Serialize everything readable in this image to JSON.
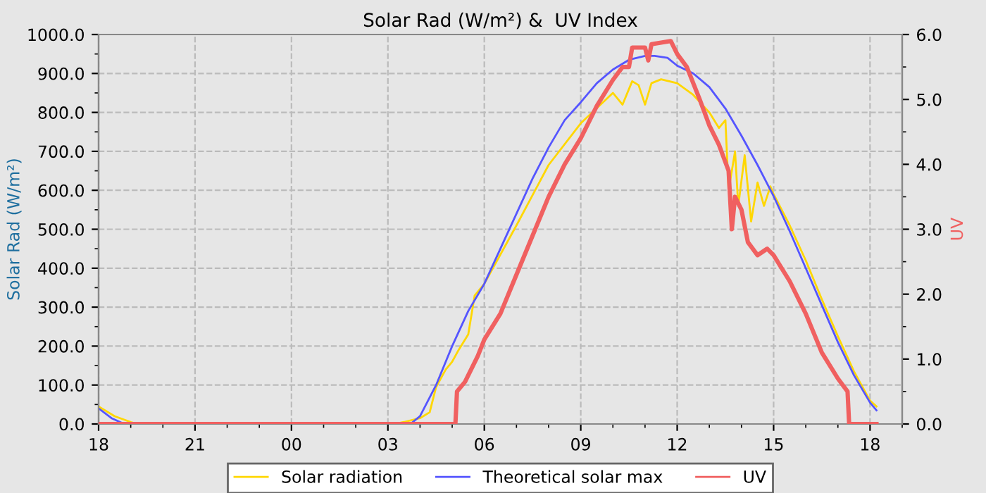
{
  "chart_data": {
    "type": "line",
    "title": "Solar Rad (W/m²) &  UV Index",
    "ylabel": "Solar Rad (W/m²)",
    "y2label": "UV",
    "xlim": [
      18,
      43.0
    ],
    "ylim": [
      0,
      1000
    ],
    "y2lim": [
      0,
      6
    ],
    "xticks": [
      {
        "value": 18,
        "label": "18"
      },
      {
        "value": 21,
        "label": "21"
      },
      {
        "value": 24,
        "label": "00"
      },
      {
        "value": 27,
        "label": "03"
      },
      {
        "value": 30,
        "label": "06"
      },
      {
        "value": 33,
        "label": "09"
      },
      {
        "value": 36,
        "label": "12"
      },
      {
        "value": 39,
        "label": "15"
      },
      {
        "value": 42,
        "label": "18"
      }
    ],
    "yticks": [
      {
        "value": 0,
        "label": "0.0"
      },
      {
        "value": 100,
        "label": "100.0"
      },
      {
        "value": 200,
        "label": "200.0"
      },
      {
        "value": 300,
        "label": "300.0"
      },
      {
        "value": 400,
        "label": "400.0"
      },
      {
        "value": 500,
        "label": "500.0"
      },
      {
        "value": 600,
        "label": "600.0"
      },
      {
        "value": 700,
        "label": "700.0"
      },
      {
        "value": 800,
        "label": "800.0"
      },
      {
        "value": 900,
        "label": "900.0"
      },
      {
        "value": 1000,
        "label": "1000.0"
      }
    ],
    "y2ticks": [
      {
        "value": 0,
        "label": "0.0"
      },
      {
        "value": 1,
        "label": "1.0"
      },
      {
        "value": 2,
        "label": "2.0"
      },
      {
        "value": 3,
        "label": "3.0"
      },
      {
        "value": 4,
        "label": "4.0"
      },
      {
        "value": 5,
        "label": "5.0"
      },
      {
        "value": 6,
        "label": "6.0"
      }
    ],
    "grid": true,
    "legend": "bottom",
    "line_style": "solid",
    "series": [
      {
        "name": "Solar radiation",
        "color": "#ffd700",
        "x": [
          18.0,
          18.5,
          19.0,
          19.2,
          27.2,
          27.5,
          28.0,
          28.3,
          28.5,
          28.8,
          29.0,
          29.2,
          29.5,
          29.7,
          30.0,
          31.0,
          32.0,
          33.0,
          34.0,
          34.3,
          34.6,
          34.8,
          35.0,
          35.2,
          35.5,
          36.0,
          36.5,
          37.0,
          37.3,
          37.5,
          37.6,
          37.8,
          37.9,
          38.1,
          38.3,
          38.5,
          38.7,
          38.9,
          39.0,
          39.5,
          40.0,
          40.5,
          41.0,
          41.5,
          42.0,
          42.2
        ],
        "values": [
          45,
          20,
          5,
          0,
          0,
          5,
          15,
          30,
          95,
          140,
          160,
          190,
          230,
          330,
          360,
          510,
          665,
          772,
          850,
          820,
          880,
          870,
          820,
          875,
          885,
          875,
          845,
          800,
          760,
          780,
          600,
          700,
          560,
          690,
          520,
          620,
          560,
          610,
          590,
          510,
          420,
          320,
          225,
          135,
          60,
          45
        ]
      },
      {
        "name": "Theoretical solar max",
        "color": "#5555ff",
        "x": [
          18.0,
          18.4,
          18.8,
          27.7,
          28.0,
          28.5,
          29.0,
          29.5,
          30.0,
          30.5,
          31.0,
          31.5,
          32.0,
          32.5,
          33.0,
          33.5,
          34.0,
          34.5,
          35.0,
          35.3,
          35.7,
          36.0,
          36.5,
          37.0,
          37.5,
          38.0,
          38.5,
          39.0,
          39.5,
          40.0,
          40.5,
          41.0,
          41.5,
          42.0,
          42.2
        ],
        "values": [
          40,
          15,
          0,
          0,
          20,
          100,
          200,
          290,
          360,
          450,
          540,
          630,
          710,
          780,
          826,
          875,
          910,
          935,
          945,
          945,
          940,
          920,
          900,
          865,
          810,
          740,
          665,
          585,
          495,
          400,
          305,
          210,
          125,
          55,
          35
        ]
      },
      {
        "name": "UV",
        "color": "#f06060",
        "axis": "y2",
        "x": [
          18.0,
          29.1,
          29.15,
          29.4,
          29.6,
          29.8,
          30.0,
          30.5,
          31.0,
          31.5,
          32.0,
          32.5,
          33.0,
          33.5,
          34.0,
          34.3,
          34.5,
          34.6,
          35.0,
          35.1,
          35.2,
          35.8,
          36.0,
          36.3,
          36.7,
          37.0,
          37.3,
          37.6,
          37.7,
          37.8,
          38.0,
          38.2,
          38.5,
          38.8,
          39.0,
          39.5,
          40.0,
          40.5,
          41.0,
          41.3,
          41.35,
          42.2
        ],
        "values": [
          0,
          0,
          0.5,
          0.65,
          0.85,
          1.05,
          1.3,
          1.7,
          2.3,
          2.9,
          3.5,
          4.0,
          4.4,
          4.9,
          5.3,
          5.5,
          5.5,
          5.8,
          5.8,
          5.6,
          5.85,
          5.9,
          5.7,
          5.5,
          5.0,
          4.6,
          4.3,
          3.9,
          3.0,
          3.5,
          3.3,
          2.8,
          2.6,
          2.7,
          2.6,
          2.2,
          1.7,
          1.1,
          0.7,
          0.5,
          0,
          0
        ]
      }
    ]
  }
}
